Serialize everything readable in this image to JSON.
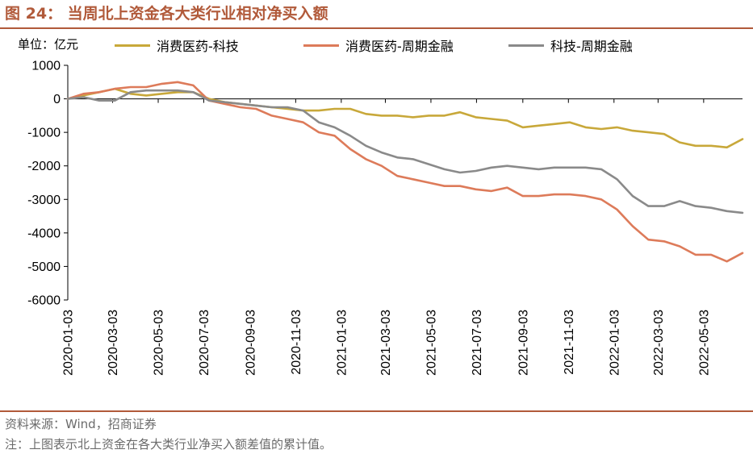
{
  "figure": {
    "title": "图 24： 当周北上资金各大类行业相对净买入额",
    "unit_label": "单位：亿元",
    "source": "资料来源：Wind，招商证券",
    "note": "注：上图表示北上资金在各大类行业净买入额差值的累计值。"
  },
  "colors": {
    "accent": "#b15a3a",
    "series_1": "#c8a83a",
    "series_2": "#dd7b5a",
    "series_3": "#8a8a8a"
  },
  "chart_data": {
    "type": "line",
    "title": "当周北上资金各大类行业相对净买入额",
    "ylabel": "单位：亿元",
    "xlabel": "",
    "ylim": [
      -6000,
      1000
    ],
    "yticks": [
      1000,
      0,
      -1000,
      -2000,
      -3000,
      -4000,
      -5000,
      -6000
    ],
    "xlim": [
      "2020-01-03",
      "2022-06-24"
    ],
    "xticks": [
      "2020-01-03",
      "2020-03-03",
      "2020-05-03",
      "2020-07-03",
      "2020-09-03",
      "2020-11-03",
      "2021-01-03",
      "2021-03-03",
      "2021-05-03",
      "2021-07-03",
      "2021-09-03",
      "2021-11-03",
      "2022-01-03",
      "2022-03-03",
      "2022-05-03"
    ],
    "grid": false,
    "legend": "top",
    "series": [
      {
        "name": "消费医药-科技",
        "points": [
          [
            "2020-01-03",
            0
          ],
          [
            "2020-01-24",
            100
          ],
          [
            "2020-02-14",
            200
          ],
          [
            "2020-03-06",
            300
          ],
          [
            "2020-03-27",
            150
          ],
          [
            "2020-04-17",
            100
          ],
          [
            "2020-05-08",
            150
          ],
          [
            "2020-05-29",
            200
          ],
          [
            "2020-06-19",
            200
          ],
          [
            "2020-07-10",
            0
          ],
          [
            "2020-07-31",
            -100
          ],
          [
            "2020-08-21",
            -150
          ],
          [
            "2020-09-11",
            -200
          ],
          [
            "2020-10-02",
            -250
          ],
          [
            "2020-10-23",
            -300
          ],
          [
            "2020-11-13",
            -350
          ],
          [
            "2020-12-04",
            -350
          ],
          [
            "2020-12-25",
            -300
          ],
          [
            "2021-01-15",
            -300
          ],
          [
            "2021-02-05",
            -450
          ],
          [
            "2021-02-26",
            -500
          ],
          [
            "2021-03-19",
            -500
          ],
          [
            "2021-04-09",
            -550
          ],
          [
            "2021-04-30",
            -500
          ],
          [
            "2021-05-21",
            -500
          ],
          [
            "2021-06-11",
            -400
          ],
          [
            "2021-07-02",
            -550
          ],
          [
            "2021-07-23",
            -600
          ],
          [
            "2021-08-13",
            -650
          ],
          [
            "2021-09-03",
            -850
          ],
          [
            "2021-09-24",
            -800
          ],
          [
            "2021-10-15",
            -750
          ],
          [
            "2021-11-05",
            -700
          ],
          [
            "2021-11-26",
            -850
          ],
          [
            "2021-12-17",
            -900
          ],
          [
            "2022-01-07",
            -850
          ],
          [
            "2022-01-28",
            -950
          ],
          [
            "2022-02-18",
            -1000
          ],
          [
            "2022-03-11",
            -1050
          ],
          [
            "2022-04-01",
            -1300
          ],
          [
            "2022-04-22",
            -1400
          ],
          [
            "2022-05-13",
            -1400
          ],
          [
            "2022-06-03",
            -1450
          ],
          [
            "2022-06-24",
            -1200
          ]
        ]
      },
      {
        "name": "消费医药-周期金融",
        "points": [
          [
            "2020-01-03",
            0
          ],
          [
            "2020-01-24",
            150
          ],
          [
            "2020-02-14",
            200
          ],
          [
            "2020-03-06",
            300
          ],
          [
            "2020-03-27",
            350
          ],
          [
            "2020-04-17",
            350
          ],
          [
            "2020-05-08",
            450
          ],
          [
            "2020-05-29",
            500
          ],
          [
            "2020-06-19",
            400
          ],
          [
            "2020-07-10",
            -50
          ],
          [
            "2020-07-31",
            -150
          ],
          [
            "2020-08-21",
            -250
          ],
          [
            "2020-09-11",
            -300
          ],
          [
            "2020-10-02",
            -500
          ],
          [
            "2020-10-23",
            -600
          ],
          [
            "2020-11-13",
            -700
          ],
          [
            "2020-12-04",
            -1000
          ],
          [
            "2020-12-25",
            -1100
          ],
          [
            "2021-01-15",
            -1500
          ],
          [
            "2021-02-05",
            -1800
          ],
          [
            "2021-02-26",
            -2000
          ],
          [
            "2021-03-19",
            -2300
          ],
          [
            "2021-04-09",
            -2400
          ],
          [
            "2021-04-30",
            -2500
          ],
          [
            "2021-05-21",
            -2600
          ],
          [
            "2021-06-11",
            -2600
          ],
          [
            "2021-07-02",
            -2700
          ],
          [
            "2021-07-23",
            -2750
          ],
          [
            "2021-08-13",
            -2650
          ],
          [
            "2021-09-03",
            -2900
          ],
          [
            "2021-09-24",
            -2900
          ],
          [
            "2021-10-15",
            -2850
          ],
          [
            "2021-11-05",
            -2850
          ],
          [
            "2021-11-26",
            -2900
          ],
          [
            "2021-12-17",
            -3000
          ],
          [
            "2022-01-07",
            -3300
          ],
          [
            "2022-01-28",
            -3800
          ],
          [
            "2022-02-18",
            -4200
          ],
          [
            "2022-03-11",
            -4250
          ],
          [
            "2022-04-01",
            -4400
          ],
          [
            "2022-04-22",
            -4650
          ],
          [
            "2022-05-13",
            -4650
          ],
          [
            "2022-06-03",
            -4850
          ],
          [
            "2022-06-24",
            -4600
          ]
        ]
      },
      {
        "name": "科技-周期金融",
        "points": [
          [
            "2020-01-03",
            0
          ],
          [
            "2020-01-24",
            50
          ],
          [
            "2020-02-14",
            -50
          ],
          [
            "2020-03-06",
            -50
          ],
          [
            "2020-03-27",
            200
          ],
          [
            "2020-04-17",
            250
          ],
          [
            "2020-05-08",
            250
          ],
          [
            "2020-05-29",
            250
          ],
          [
            "2020-06-19",
            200
          ],
          [
            "2020-07-10",
            -50
          ],
          [
            "2020-07-31",
            -100
          ],
          [
            "2020-08-21",
            -150
          ],
          [
            "2020-09-11",
            -200
          ],
          [
            "2020-10-02",
            -250
          ],
          [
            "2020-10-23",
            -250
          ],
          [
            "2020-11-13",
            -350
          ],
          [
            "2020-12-04",
            -700
          ],
          [
            "2020-12-25",
            -850
          ],
          [
            "2021-01-15",
            -1100
          ],
          [
            "2021-02-05",
            -1400
          ],
          [
            "2021-02-26",
            -1600
          ],
          [
            "2021-03-19",
            -1750
          ],
          [
            "2021-04-09",
            -1800
          ],
          [
            "2021-04-30",
            -1950
          ],
          [
            "2021-05-21",
            -2100
          ],
          [
            "2021-06-11",
            -2200
          ],
          [
            "2021-07-02",
            -2150
          ],
          [
            "2021-07-23",
            -2050
          ],
          [
            "2021-08-13",
            -2000
          ],
          [
            "2021-09-03",
            -2050
          ],
          [
            "2021-09-24",
            -2100
          ],
          [
            "2021-10-15",
            -2050
          ],
          [
            "2021-11-05",
            -2050
          ],
          [
            "2021-11-26",
            -2050
          ],
          [
            "2021-12-17",
            -2100
          ],
          [
            "2022-01-07",
            -2400
          ],
          [
            "2022-01-28",
            -2900
          ],
          [
            "2022-02-18",
            -3200
          ],
          [
            "2022-03-11",
            -3200
          ],
          [
            "2022-04-01",
            -3050
          ],
          [
            "2022-04-22",
            -3200
          ],
          [
            "2022-05-13",
            -3250
          ],
          [
            "2022-06-03",
            -3350
          ],
          [
            "2022-06-24",
            -3400
          ]
        ]
      }
    ]
  }
}
